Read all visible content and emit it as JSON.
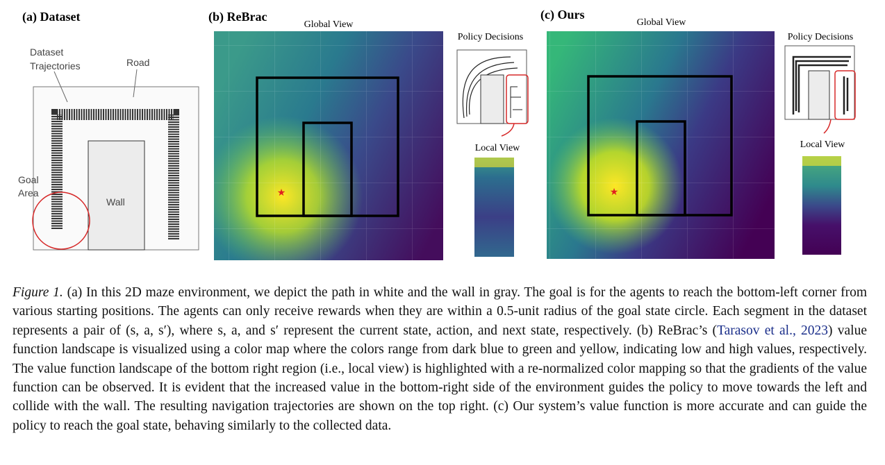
{
  "panel_a": {
    "title": "(a) Dataset",
    "trajectories_label": [
      "Dataset",
      "Trajectories"
    ],
    "road_label": "Road",
    "goal_label": [
      "Goal",
      "Area"
    ],
    "wall_label": "Wall"
  },
  "panel_b": {
    "title": "(b) ReBrac",
    "global_view": "Global View",
    "policy_decisions": "Policy Decisions",
    "local_view": "Local View"
  },
  "panel_c": {
    "title": "(c) Ours",
    "global_view": "Global View",
    "policy_decisions": "Policy Decisions",
    "local_view": "Local View"
  },
  "caption": {
    "label": "Figure 1.",
    "text_1": "(a) In this 2D maze environment, we depict the path in white and the wall in gray. The goal is for the agents to reach the bottom-left corner from various starting positions. The agents can only receive rewards when they are within a 0.5-unit radius of the goal state circle. Each segment in the dataset represents a pair of (s, a, s′), where s, a, and s′ represent the current state, action, and next state, respectively. (b) ReBrac’s (",
    "citation": "Tarasov et al., 2023",
    "text_2": ") value function landscape is visualized using a color map where the colors range from dark blue to green and yellow, indicating low and high values, respectively. The value function landscape of the bottom right region (i.e., local view) is highlighted with a re-normalized color mapping so that the gradients of the value function can be observed. It is evident that the increased value in the bottom-right side of the environment guides the policy to move towards the left and collide with the wall. The resulting navigation trajectories are shown on the top right. (c) Our system’s value function is more accurate and can guide the policy to reach the goal state, behaving similarly to the collected data."
  }
}
